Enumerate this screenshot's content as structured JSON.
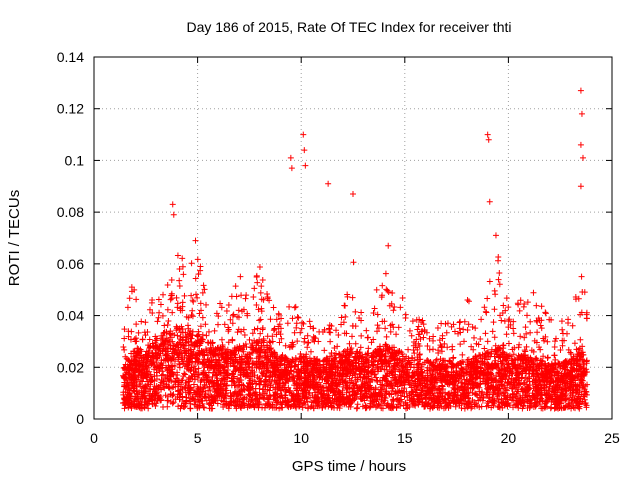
{
  "chart_data": {
    "type": "scatter",
    "title": "Day 186 of 2015, Rate Of TEC Index for receiver thti",
    "xlabel": "GPS time / hours",
    "ylabel": "ROTI / TECUs",
    "xlim": [
      0,
      25
    ],
    "ylim": [
      0,
      0.14
    ],
    "xticks": [
      0,
      5,
      10,
      15,
      20,
      25
    ],
    "xtick_labels": [
      "0",
      "5",
      "10",
      "15",
      "20",
      "25"
    ],
    "yticks": [
      0,
      0.02,
      0.04,
      0.06,
      0.08,
      0.1,
      0.12,
      0.14
    ],
    "ytick_labels": [
      "0",
      "0.02",
      "0.04",
      "0.06",
      "0.08",
      "0.1",
      "0.12",
      "0.14"
    ],
    "grid": true,
    "marker": "+",
    "color": "#ff0000",
    "series": [
      {
        "name": "ROTI",
        "notable_points": {
          "x": [
            3.8,
            3.85,
            4.9,
            9.5,
            9.55,
            10.1,
            10.15,
            10.2,
            11.3,
            12.5,
            14.2,
            19.0,
            19.05,
            19.1,
            19.4,
            23.5,
            23.55,
            23.5,
            23.6,
            23.5
          ],
          "y": [
            0.083,
            0.079,
            0.069,
            0.101,
            0.097,
            0.11,
            0.104,
            0.098,
            0.091,
            0.087,
            0.067,
            0.11,
            0.108,
            0.084,
            0.071,
            0.127,
            0.118,
            0.106,
            0.101,
            0.09
          ]
        },
        "profile": {
          "x": [
            1.4,
            2,
            2.5,
            3,
            3.5,
            4,
            4.5,
            5,
            5.5,
            6,
            6.5,
            7,
            7.5,
            8,
            8.5,
            9,
            9.5,
            10,
            10.5,
            11,
            11.5,
            12,
            12.5,
            13,
            13.5,
            14,
            14.5,
            15,
            15.5,
            16,
            16.5,
            17,
            17.5,
            18,
            18.5,
            19,
            19.5,
            20,
            20.5,
            21,
            21.5,
            22,
            22.5,
            23,
            23.5,
            23.8
          ],
          "y_typical": [
            0.014,
            0.018,
            0.017,
            0.02,
            0.022,
            0.024,
            0.022,
            0.022,
            0.02,
            0.018,
            0.017,
            0.019,
            0.018,
            0.02,
            0.018,
            0.016,
            0.015,
            0.016,
            0.015,
            0.015,
            0.016,
            0.017,
            0.018,
            0.016,
            0.017,
            0.019,
            0.018,
            0.016,
            0.015,
            0.015,
            0.014,
            0.015,
            0.014,
            0.015,
            0.016,
            0.017,
            0.018,
            0.016,
            0.016,
            0.016,
            0.015,
            0.014,
            0.014,
            0.015,
            0.017,
            0.016
          ],
          "y_upper": [
            0.04,
            0.056,
            0.04,
            0.05,
            0.05,
            0.07,
            0.058,
            0.068,
            0.048,
            0.045,
            0.045,
            0.057,
            0.046,
            0.06,
            0.046,
            0.04,
            0.045,
            0.045,
            0.038,
            0.035,
            0.042,
            0.045,
            0.062,
            0.04,
            0.044,
            0.067,
            0.048,
            0.047,
            0.04,
            0.038,
            0.036,
            0.041,
            0.035,
            0.046,
            0.048,
            0.058,
            0.064,
            0.05,
            0.045,
            0.053,
            0.046,
            0.04,
            0.038,
            0.039,
            0.058,
            0.048
          ]
        }
      }
    ]
  }
}
